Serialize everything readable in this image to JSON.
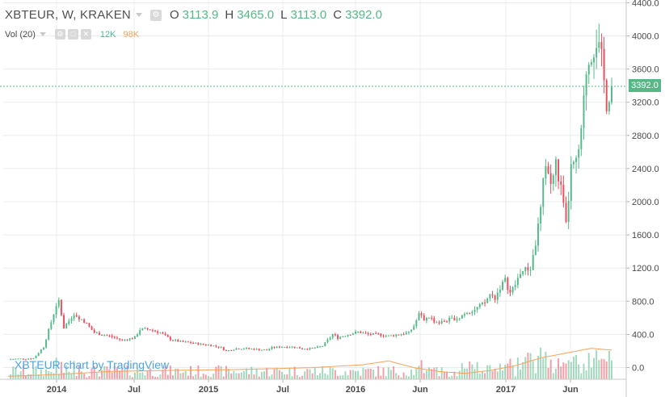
{
  "legend": {
    "symbol": "XBTEUR, W, KRAKEN",
    "gear_glyph": "⚙",
    "o_label": "O",
    "o_value": "3113.9",
    "h_label": "H",
    "h_value": "3465.0",
    "l_label": "L",
    "l_value": "3113.0",
    "c_label": "C",
    "c_value": "3392.0"
  },
  "volume_legend": {
    "label": "Vol (20)",
    "icons": [
      "⚙",
      "□",
      "✕"
    ],
    "volume": "12K",
    "volume_ma": "98K"
  },
  "watermark": "XBTEUR chart by TradingView",
  "last_price_label": "3392.0",
  "colors": {
    "up": "#53b987",
    "down": "#eb4d5c",
    "ma": "#f5a35c",
    "grid": "#e9ecef",
    "axis_text": "#4a4a4a",
    "price_line": "#53b987",
    "watermark": "#4da3e0"
  },
  "chart_data": {
    "type": "candlestick",
    "title": "XBTEUR, W, KRAKEN",
    "x_ticks": [
      "2014",
      "Jul",
      "2015",
      "Jul",
      "2016",
      "Jun",
      "2017",
      "Jun"
    ],
    "y_ticks": [
      "0.0",
      "400.0",
      "800.0",
      "1200.0",
      "1600.0",
      "2000.0",
      "2400.0",
      "2800.0",
      "3200.0",
      "3600.0",
      "4000.0",
      "4400.0"
    ],
    "ylim": [
      -150,
      4400
    ],
    "last_price": 3392.0,
    "grid": true,
    "price_waypoints": [
      [
        0,
        100
      ],
      [
        10,
        110
      ],
      [
        14,
        250
      ],
      [
        16,
        450
      ],
      [
        18,
        650
      ],
      [
        20,
        800
      ],
      [
        22,
        480
      ],
      [
        26,
        650
      ],
      [
        30,
        560
      ],
      [
        34,
        420
      ],
      [
        40,
        380
      ],
      [
        45,
        330
      ],
      [
        50,
        360
      ],
      [
        52,
        460
      ],
      [
        56,
        460
      ],
      [
        60,
        420
      ],
      [
        64,
        340
      ],
      [
        68,
        310
      ],
      [
        72,
        300
      ],
      [
        76,
        280
      ],
      [
        80,
        270
      ],
      [
        84,
        240
      ],
      [
        86,
        200
      ],
      [
        90,
        230
      ],
      [
        94,
        230
      ],
      [
        98,
        220
      ],
      [
        102,
        210
      ],
      [
        104,
        240
      ],
      [
        108,
        250
      ],
      [
        112,
        250
      ],
      [
        116,
        230
      ],
      [
        120,
        230
      ],
      [
        124,
        260
      ],
      [
        128,
        400
      ],
      [
        130,
        360
      ],
      [
        134,
        400
      ],
      [
        138,
        430
      ],
      [
        142,
        400
      ],
      [
        146,
        400
      ],
      [
        150,
        380
      ],
      [
        154,
        400
      ],
      [
        158,
        420
      ],
      [
        160,
        500
      ],
      [
        162,
        640
      ],
      [
        164,
        580
      ],
      [
        166,
        610
      ],
      [
        168,
        560
      ],
      [
        170,
        540
      ],
      [
        172,
        560
      ],
      [
        174,
        580
      ],
      [
        178,
        600
      ],
      [
        180,
        660
      ],
      [
        184,
        700
      ],
      [
        188,
        780
      ],
      [
        190,
        880
      ],
      [
        192,
        840
      ],
      [
        194,
        970
      ],
      [
        196,
        1050
      ],
      [
        198,
        900
      ],
      [
        200,
        1000
      ],
      [
        202,
        1150
      ],
      [
        206,
        1200
      ],
      [
        208,
        1500
      ],
      [
        210,
        1900
      ],
      [
        212,
        2500
      ],
      [
        214,
        2200
      ],
      [
        216,
        2450
      ],
      [
        218,
        2150
      ],
      [
        220,
        1700
      ],
      [
        222,
        2400
      ],
      [
        224,
        2450
      ],
      [
        226,
        2800
      ],
      [
        228,
        3600
      ],
      [
        230,
        3800
      ],
      [
        232,
        3950
      ],
      [
        234,
        3700
      ],
      [
        236,
        3200
      ],
      [
        238,
        3392
      ]
    ],
    "volume_ma_waypoints": [
      [
        0,
        0.03
      ],
      [
        20,
        0.05
      ],
      [
        40,
        0.08
      ],
      [
        60,
        0.09
      ],
      [
        90,
        0.1
      ],
      [
        120,
        0.12
      ],
      [
        140,
        0.15
      ],
      [
        150,
        0.19
      ],
      [
        160,
        0.12
      ],
      [
        170,
        0.08
      ],
      [
        180,
        0.06
      ],
      [
        190,
        0.09
      ],
      [
        200,
        0.14
      ],
      [
        210,
        0.22
      ],
      [
        220,
        0.27
      ],
      [
        230,
        0.32
      ],
      [
        238,
        0.3
      ]
    ]
  }
}
